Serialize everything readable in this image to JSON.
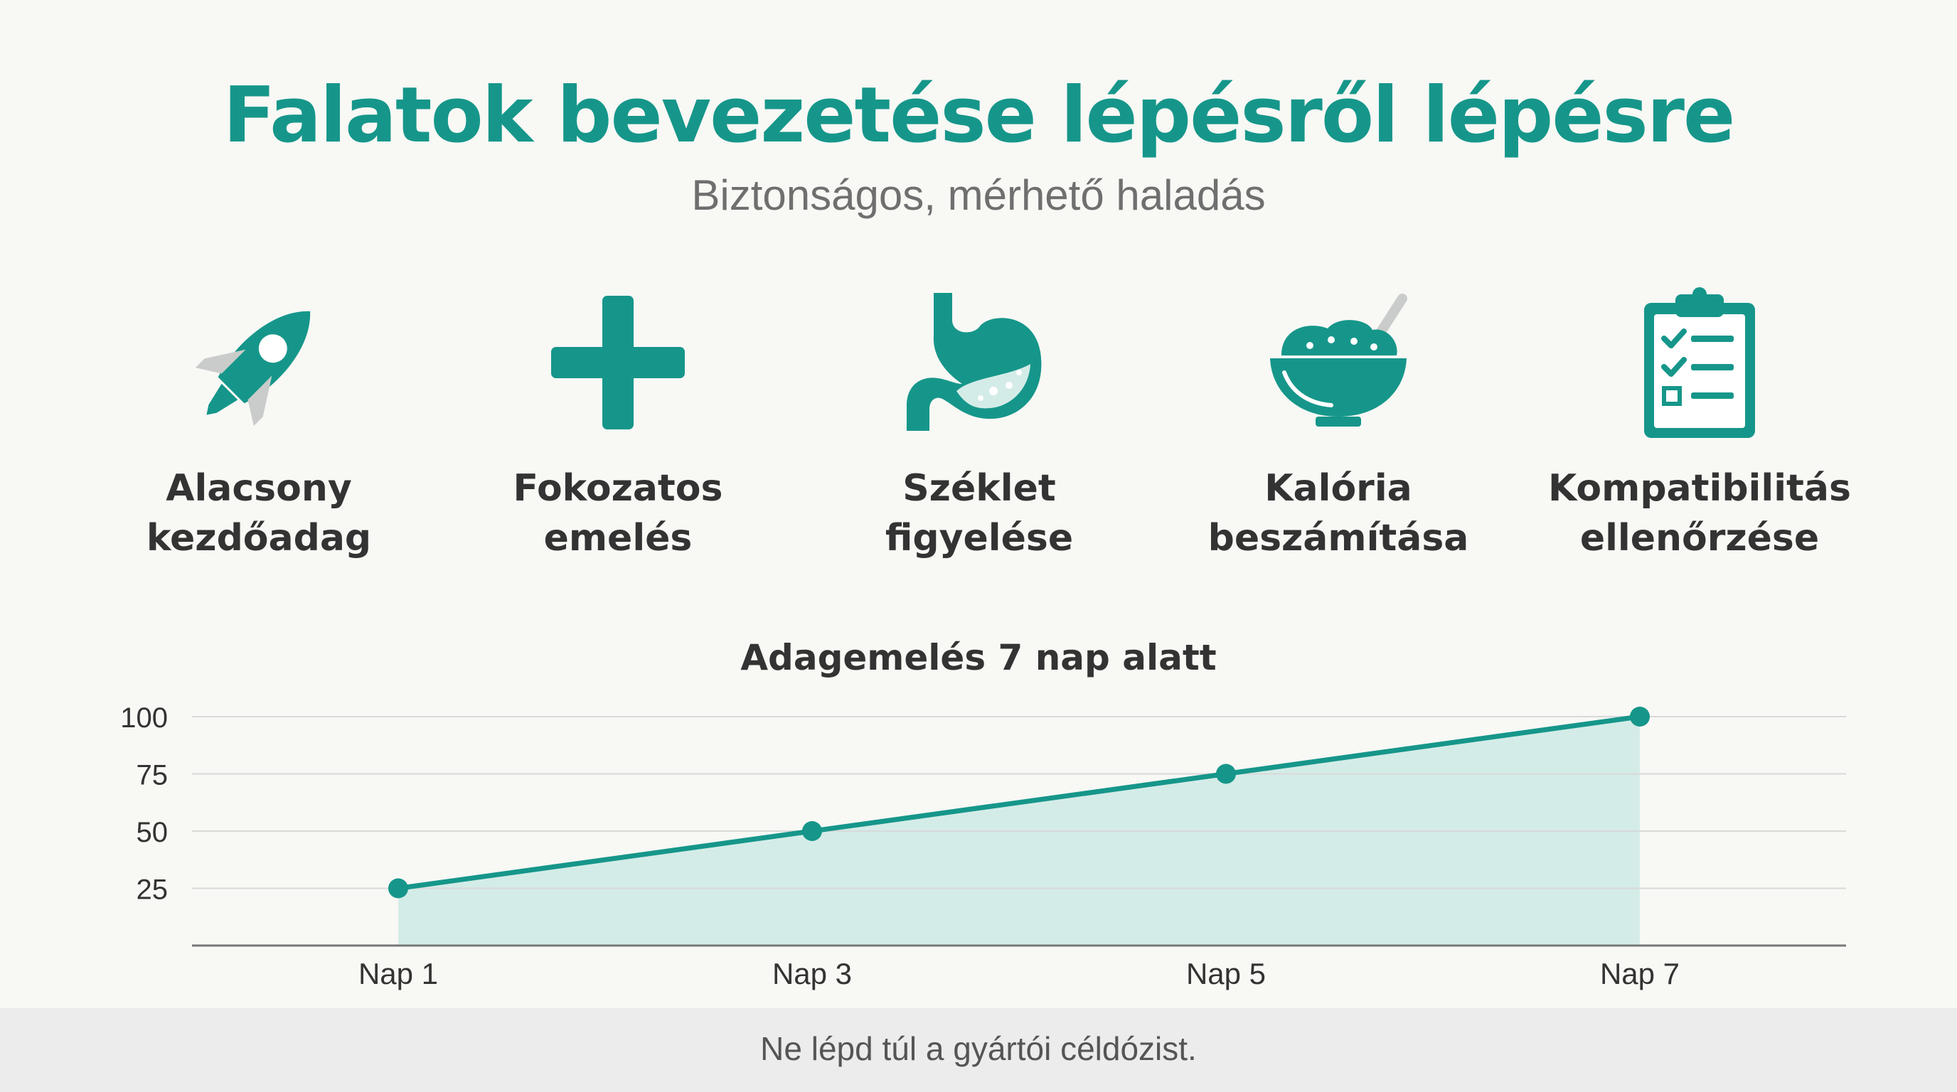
{
  "header": {
    "title": "Falatok bevezetése lépésről lépésre",
    "subtitle": "Biztonságos, mérhető haladás"
  },
  "features": [
    {
      "icon": "rocket-icon",
      "line1": "Alacsony",
      "line2": "kezdőadag"
    },
    {
      "icon": "plus-icon",
      "line1": "Fokozatos",
      "line2": "emelés"
    },
    {
      "icon": "stomach-icon",
      "line1": "Széklet",
      "line2": "figyelése"
    },
    {
      "icon": "bowl-icon",
      "line1": "Kalória",
      "line2": "beszámítása"
    },
    {
      "icon": "clipboard-checklist-icon",
      "line1": "Kompatibilitás",
      "line2": "ellenőrzése"
    }
  ],
  "colors": {
    "accent": "#16968a",
    "icon_light": "#c9cccb",
    "area_fill": "#d4ece8",
    "grid": "#d9d9d9",
    "text_dark": "#333333"
  },
  "chart_data": {
    "type": "area",
    "title": "Adagemelés 7 nap alatt",
    "categories": [
      "Nap 1",
      "Nap 3",
      "Nap 5",
      "Nap 7"
    ],
    "values": [
      25,
      50,
      75,
      100
    ],
    "yticks": [
      25,
      50,
      75,
      100
    ],
    "ylim": [
      0,
      100
    ],
    "grid": true,
    "legend": "none"
  },
  "footer": {
    "note": "Ne lépd túl a gyártói céldózist."
  }
}
